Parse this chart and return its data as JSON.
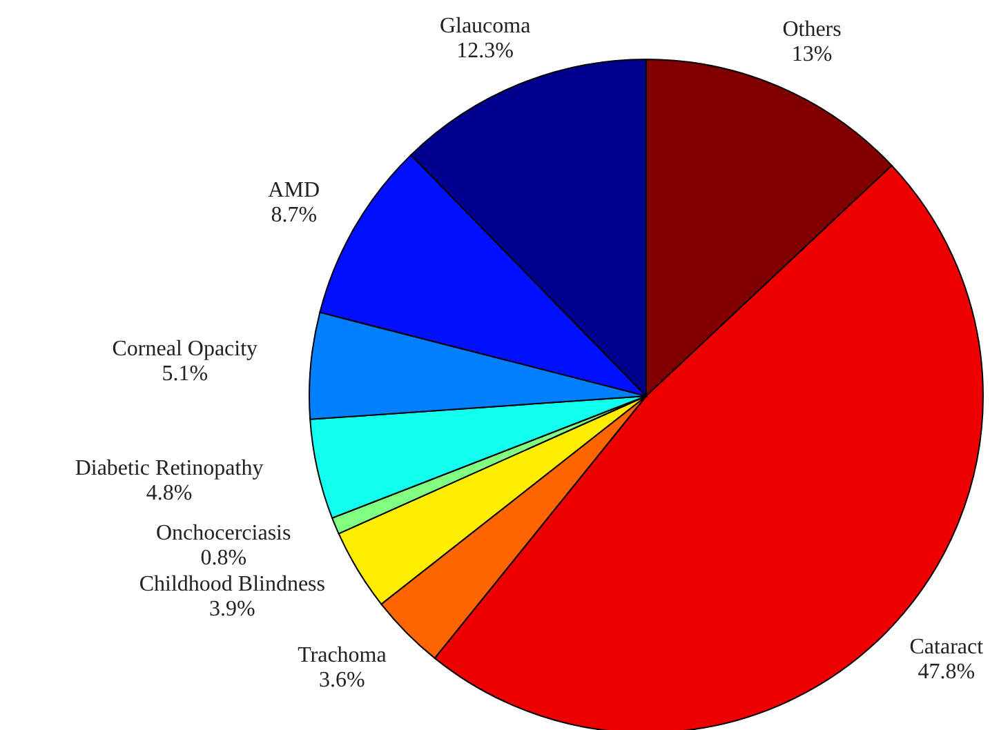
{
  "chart_data": {
    "type": "pie",
    "categories": [
      "Others",
      "Cataract",
      "Trachoma",
      "Childhood Blindness",
      "Onchocerciasis",
      "Diabetic Retinopathy",
      "Corneal Opacity",
      "AMD",
      "Glaucoma"
    ],
    "values": [
      13,
      47.8,
      3.6,
      3.9,
      0.8,
      4.8,
      5.1,
      8.7,
      12.3
    ],
    "colors": [
      "#800000",
      "#ee0000",
      "#ff6600",
      "#ffee00",
      "#80ff80",
      "#10ffee",
      "#0080ff",
      "#0010ff",
      "#00008f"
    ],
    "value_labels": [
      "13%",
      "47.8%",
      "3.6%",
      "3.9%",
      "0.8%",
      "4.8%",
      "5.1%",
      "8.7%",
      "12.3%"
    ]
  }
}
